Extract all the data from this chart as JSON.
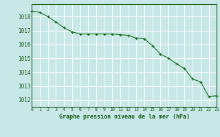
{
  "x": [
    0,
    1,
    2,
    3,
    4,
    5,
    6,
    7,
    8,
    9,
    10,
    11,
    12,
    13,
    14,
    15,
    16,
    17,
    18,
    19,
    20,
    21,
    22,
    23
  ],
  "y": [
    1018.4,
    1018.3,
    1018.0,
    1017.6,
    1017.2,
    1016.9,
    1016.75,
    1016.75,
    1016.75,
    1016.75,
    1016.75,
    1016.7,
    1016.65,
    1016.45,
    1016.4,
    1015.9,
    1015.3,
    1015.0,
    1014.6,
    1014.25,
    1013.5,
    1013.3,
    1012.25,
    1012.3
  ],
  "line_color": "#1a6b1a",
  "marker": "+",
  "marker_color": "#1a6b1a",
  "bg_color": "#c8e8e8",
  "grid_color": "#b0d8d8",
  "grid_major_color": "#ffffff",
  "xlabel": "Graphe pression niveau de la mer (hPa)",
  "xlabel_color": "#1a5c1a",
  "tick_color": "#1a5c1a",
  "ylim": [
    1011.5,
    1018.9
  ],
  "xlim": [
    0,
    23
  ],
  "yticks": [
    1012,
    1013,
    1014,
    1015,
    1016,
    1017,
    1018
  ],
  "xticks": [
    0,
    1,
    2,
    3,
    4,
    5,
    6,
    7,
    8,
    9,
    10,
    11,
    12,
    13,
    14,
    15,
    16,
    17,
    18,
    19,
    20,
    21,
    22,
    23
  ],
  "linewidth": 0.8,
  "markersize": 3.5,
  "markeredgewidth": 0.9
}
